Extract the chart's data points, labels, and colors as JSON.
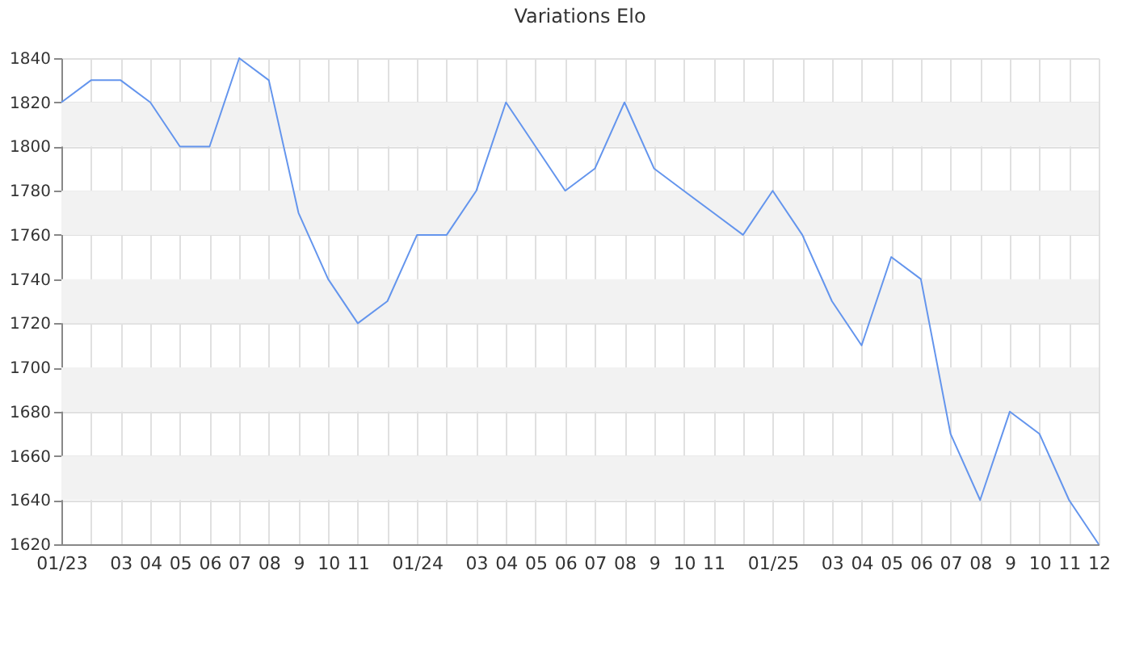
{
  "chart_data": {
    "type": "line",
    "title": "Variations Elo",
    "categories": [
      "01/23",
      null,
      "03",
      "04",
      "05",
      "06",
      "07",
      "08",
      "9",
      "10",
      "11",
      null,
      "01/24",
      null,
      "03",
      "04",
      "05",
      "06",
      "07",
      "08",
      "9",
      "10",
      "11",
      null,
      "01/25",
      null,
      "03",
      "04",
      "05",
      "06",
      "07",
      "08",
      "9",
      "10",
      "11",
      "12"
    ],
    "series": [
      {
        "color": "#6495ed",
        "values": [
          1820,
          1830,
          1830,
          1820,
          1800,
          1800,
          1840,
          1830,
          1770,
          1740,
          1720,
          1730,
          1760,
          1760,
          1780,
          1820,
          1800,
          1780,
          1790,
          1820,
          1790,
          1780,
          1770,
          1760,
          1780,
          1760,
          1730,
          1710,
          1750,
          1740,
          1670,
          1640,
          1680,
          1670,
          1640,
          1620
        ]
      }
    ],
    "ylim": [
      1620,
      1840
    ],
    "yticks": [
      1620,
      1640,
      1660,
      1680,
      1700,
      1720,
      1740,
      1760,
      1780,
      1800,
      1820,
      1840
    ],
    "grid": true,
    "marker": "none",
    "line_style": "solid"
  }
}
